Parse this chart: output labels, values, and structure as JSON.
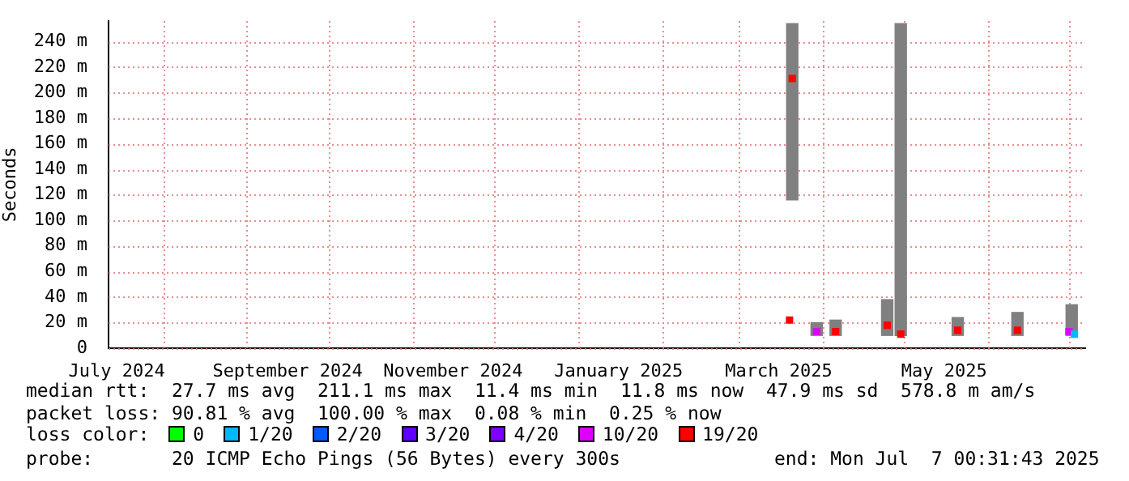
{
  "chart_data": {
    "type": "scatter",
    "ylabel": "Seconds",
    "legend_title": "loss color:",
    "legend": "bottom",
    "grid": true,
    "marker": "square",
    "xlim": [
      "2024-07-12",
      "2025-07-07"
    ],
    "xticks": [
      {
        "value": "2024-07-15",
        "label": "July 2024"
      },
      {
        "value": "2024-08-01",
        "label": null
      },
      {
        "value": "2024-09-01",
        "label": null
      },
      {
        "value": "2024-09-16",
        "label": "September 2024"
      },
      {
        "value": "2024-10-01",
        "label": null
      },
      {
        "value": "2024-11-01",
        "label": null
      },
      {
        "value": "2024-11-16",
        "label": "November 2024"
      },
      {
        "value": "2024-12-01",
        "label": null
      },
      {
        "value": "2025-01-01",
        "label": null
      },
      {
        "value": "2025-01-16",
        "label": "January 2025"
      },
      {
        "value": "2025-02-01",
        "label": null
      },
      {
        "value": "2025-03-01",
        "label": null
      },
      {
        "value": "2025-03-16",
        "label": "March 2025"
      },
      {
        "value": "2025-04-01",
        "label": null
      },
      {
        "value": "2025-05-01",
        "label": null
      },
      {
        "value": "2025-05-16",
        "label": "May 2025"
      },
      {
        "value": "2025-06-01",
        "label": null
      },
      {
        "value": "2025-07-01",
        "label": null
      }
    ],
    "ylim": [
      0,
      256
    ],
    "yticks": [
      0,
      {
        "value": 20,
        "label": "20 m"
      },
      {
        "value": 40,
        "label": "40 m"
      },
      {
        "value": 60,
        "label": "60 m"
      },
      {
        "value": 80,
        "label": "80 m"
      },
      {
        "value": 100,
        "label": "100 m"
      },
      {
        "value": 120,
        "label": "120 m"
      },
      {
        "value": 140,
        "label": "140 m"
      },
      {
        "value": 160,
        "label": "160 m"
      },
      {
        "value": 180,
        "label": "180 m"
      },
      {
        "value": 200,
        "label": "200 m"
      },
      {
        "value": 220,
        "label": "220 m"
      },
      {
        "value": 240,
        "label": "240 m"
      }
    ],
    "series": [
      {
        "type": "bar",
        "color": "#808080",
        "x": [
          "2025-03-21",
          "2025-03-30",
          "2025-04-06",
          "2025-04-25",
          "2025-04-30",
          "2025-05-21",
          "2025-06-12",
          "2025-07-02"
        ],
        "base": [
          116,
          10,
          10,
          10,
          10,
          10,
          10,
          10
        ],
        "values": [
          138,
          10,
          12,
          28,
          244,
          14,
          18,
          24
        ]
      },
      {
        "name": "0",
        "color": "#00ff00"
      },
      {
        "name": "1/20",
        "color": "#00b8ff",
        "x": [
          "2025-07-03"
        ],
        "values": [
          11
        ]
      },
      {
        "name": "2/20",
        "color": "#0059ff"
      },
      {
        "name": "3/20",
        "color": "#5e00ff"
      },
      {
        "name": "4/20",
        "color": "#7e00ff"
      },
      {
        "name": "10/20",
        "color": "#dd00ff",
        "x": [
          "2025-03-30",
          "2025-07-01"
        ],
        "values": [
          13,
          13
        ]
      },
      {
        "name": "19/20",
        "color": "#ff0000",
        "x": [
          "2025-03-20",
          "2025-03-21",
          "2025-04-06",
          "2025-04-25",
          "2025-04-30",
          "2025-05-21",
          "2025-06-12"
        ],
        "values": [
          22,
          211,
          13,
          18,
          11,
          14,
          14
        ]
      }
    ],
    "annotations": [
      "median rtt:  27.7 ms avg  211.1 ms max  11.4 ms min  11.8 ms now  47.9 ms sd  578.8 m am/s",
      "packet loss: 90.81 % avg  100.00 % max  0.08 % min  0.25 % now",
      "probe:       20 ICMP Echo Pings (56 Bytes) every 300s",
      "end: Mon Jul  7 00:31:43 2025"
    ]
  }
}
